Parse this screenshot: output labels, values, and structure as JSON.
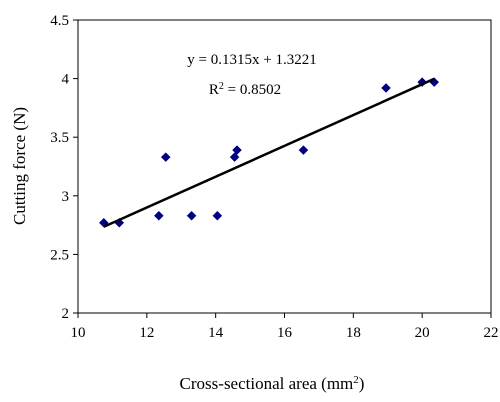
{
  "chart_data": {
    "type": "scatter",
    "xlabel_main": "Cross-sectional area (mm",
    "xlabel_sup": "2",
    "xlabel_close": ")",
    "ylabel": "Cutting force (N)",
    "xlim": [
      10,
      22
    ],
    "ylim": [
      2,
      4.5
    ],
    "xticks": [
      "10",
      "12",
      "14",
      "16",
      "18",
      "20",
      "22"
    ],
    "yticks": [
      "2",
      "2.5",
      "3",
      "3.5",
      "4",
      "4.5"
    ],
    "grid": false,
    "marker_color": "#000080",
    "trendline_color": "#000000",
    "points": [
      {
        "x": 10.75,
        "y": 2.77
      },
      {
        "x": 11.2,
        "y": 2.77
      },
      {
        "x": 12.35,
        "y": 2.83
      },
      {
        "x": 12.55,
        "y": 3.33
      },
      {
        "x": 13.3,
        "y": 2.83
      },
      {
        "x": 14.05,
        "y": 2.83
      },
      {
        "x": 14.55,
        "y": 3.33
      },
      {
        "x": 14.62,
        "y": 3.39
      },
      {
        "x": 16.55,
        "y": 3.39
      },
      {
        "x": 18.95,
        "y": 3.92
      },
      {
        "x": 20.0,
        "y": 3.97
      },
      {
        "x": 20.35,
        "y": 3.97
      }
    ],
    "trendline": {
      "slope": 0.1315,
      "intercept": 1.3221,
      "x_start": 10.75,
      "x_end": 20.35
    },
    "equation_text": "y = 0.1315x + 1.3221",
    "r2_prefix": "R",
    "r2_sup": "2",
    "r2_value": " = 0.8502"
  }
}
